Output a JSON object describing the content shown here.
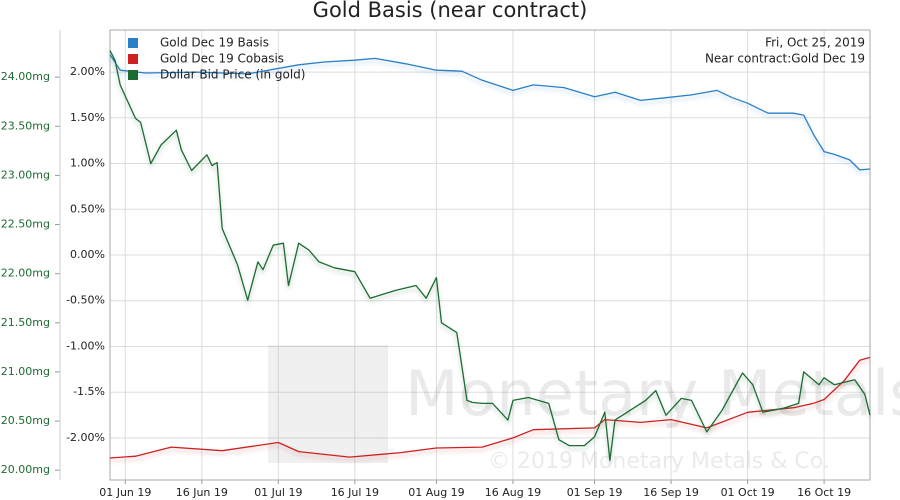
{
  "chart_data": {
    "type": "line",
    "title": "Gold Basis (near contract)",
    "annotations": [
      "Fri, Oct 25, 2019",
      "Near contract:Gold Dec 19"
    ],
    "watermark": [
      "Monetary Metals",
      "© 2019 Monetary Metals & Co."
    ],
    "legend": "upper left",
    "grid": true,
    "xlim": [
      "2019-05-29",
      "2019-10-25"
    ],
    "xticks": [
      {
        "value": "2019-06-01",
        "label": "01 Jun 19"
      },
      {
        "value": "2019-06-16",
        "label": "16 Jun 19"
      },
      {
        "value": "2019-07-01",
        "label": "01 Jul 19"
      },
      {
        "value": "2019-07-16",
        "label": "16 Jul 19"
      },
      {
        "value": "2019-08-01",
        "label": "01 Aug 19"
      },
      {
        "value": "2019-08-16",
        "label": "16 Aug 19"
      },
      {
        "value": "2019-09-01",
        "label": "01 Sep 19"
      },
      {
        "value": "2019-09-16",
        "label": "16 Sep 19"
      },
      {
        "value": "2019-10-01",
        "label": "01 Oct 19"
      },
      {
        "value": "2019-10-16",
        "label": "16 Oct 19"
      }
    ],
    "ylim": [
      -2.46,
      2.46
    ],
    "yticks": [
      {
        "value": 2,
        "label": "2.00%"
      },
      {
        "value": 1.5,
        "label": "1.50%"
      },
      {
        "value": 1,
        "label": "1.00%"
      },
      {
        "value": 0.5,
        "label": "0.50%"
      },
      {
        "value": 0,
        "label": "0.00%"
      },
      {
        "value": -0.5,
        "label": "-0.50%"
      },
      {
        "value": -1,
        "label": "-1.00%"
      },
      {
        "value": -1.5,
        "label": "-1.5%"
      },
      {
        "value": -2,
        "label": "-2.00%"
      }
    ],
    "y2lim": [
      19.9,
      24.48
    ],
    "y2ticks": [
      {
        "value": 24,
        "label": "24.00mg"
      },
      {
        "value": 23.5,
        "label": "23.50mg"
      },
      {
        "value": 23,
        "label": "23.00mg"
      },
      {
        "value": 22.5,
        "label": "22.50mg"
      },
      {
        "value": 22,
        "label": "22.00mg"
      },
      {
        "value": 21.5,
        "label": "21.50mg"
      },
      {
        "value": 21,
        "label": "21.00mg"
      },
      {
        "value": 20.5,
        "label": "20.50mg"
      },
      {
        "value": 20,
        "label": "20.00mg"
      }
    ],
    "series": [
      {
        "name": "Gold Dec 19 Basis",
        "color": "#2a7fc9",
        "x": [
          "2019-05-29",
          "2019-05-31",
          "2019-06-05",
          "2019-06-15",
          "2019-06-25",
          "2019-07-05",
          "2019-07-10",
          "2019-07-16",
          "2019-07-20",
          "2019-07-26",
          "2019-08-01",
          "2019-08-06",
          "2019-08-10",
          "2019-08-16",
          "2019-08-20",
          "2019-08-26",
          "2019-09-01",
          "2019-09-05",
          "2019-09-10",
          "2019-09-15",
          "2019-09-20",
          "2019-09-25",
          "2019-09-28",
          "2019-10-01",
          "2019-10-05",
          "2019-10-10",
          "2019-10-12",
          "2019-10-14",
          "2019-10-16",
          "2019-10-18",
          "2019-10-21",
          "2019-10-23",
          "2019-10-25"
        ],
        "values": [
          2.19,
          2.02,
          1.99,
          2.0,
          1.98,
          2.08,
          2.11,
          2.13,
          2.15,
          2.09,
          2.02,
          2.01,
          1.91,
          1.8,
          1.86,
          1.83,
          1.73,
          1.78,
          1.69,
          1.72,
          1.75,
          1.8,
          1.72,
          1.66,
          1.55,
          1.55,
          1.53,
          1.31,
          1.13,
          1.1,
          1.04,
          0.93,
          0.94
        ]
      },
      {
        "name": "Gold Dec 19 Cobasis",
        "color": "#cc2222",
        "x": [
          "2019-05-29",
          "2019-06-03",
          "2019-06-10",
          "2019-06-20",
          "2019-07-01",
          "2019-07-05",
          "2019-07-15",
          "2019-07-25",
          "2019-08-01",
          "2019-08-10",
          "2019-08-16",
          "2019-08-20",
          "2019-09-01",
          "2019-09-03",
          "2019-09-10",
          "2019-09-16",
          "2019-09-23",
          "2019-10-01",
          "2019-10-10",
          "2019-10-14",
          "2019-10-16",
          "2019-10-20",
          "2019-10-23",
          "2019-10-25"
        ],
        "values": [
          -2.22,
          -2.2,
          -2.1,
          -2.14,
          -2.05,
          -2.15,
          -2.21,
          -2.16,
          -2.11,
          -2.1,
          -2.0,
          -1.91,
          -1.89,
          -1.8,
          -1.83,
          -1.8,
          -1.89,
          -1.72,
          -1.67,
          -1.62,
          -1.58,
          -1.37,
          -1.15,
          -1.12
        ]
      },
      {
        "name": "Dollar Bid Price (in gold)",
        "color": "#1e6b32",
        "axis": "y2",
        "x": [
          "2019-05-29",
          "2019-05-30",
          "2019-05-31",
          "2019-06-03",
          "2019-06-04",
          "2019-06-06",
          "2019-06-08",
          "2019-06-11",
          "2019-06-12",
          "2019-06-14",
          "2019-06-17",
          "2019-06-18",
          "2019-06-19",
          "2019-06-20",
          "2019-06-23",
          "2019-06-25",
          "2019-06-27",
          "2019-06-28",
          "2019-06-30",
          "2019-07-02",
          "2019-07-03",
          "2019-07-05",
          "2019-07-07",
          "2019-07-09",
          "2019-07-12",
          "2019-07-16",
          "2019-07-19",
          "2019-07-24",
          "2019-07-28",
          "2019-07-30",
          "2019-08-01",
          "2019-08-02",
          "2019-08-05",
          "2019-08-07",
          "2019-08-08",
          "2019-08-10",
          "2019-08-12",
          "2019-08-15",
          "2019-08-16",
          "2019-08-19",
          "2019-08-23",
          "2019-08-25",
          "2019-08-27",
          "2019-08-30",
          "2019-09-01",
          "2019-09-03",
          "2019-09-04",
          "2019-09-05",
          "2019-09-08",
          "2019-09-11",
          "2019-09-13",
          "2019-09-15",
          "2019-09-18",
          "2019-09-20",
          "2019-09-23",
          "2019-09-26",
          "2019-09-30",
          "2019-10-02",
          "2019-10-04",
          "2019-10-08",
          "2019-10-11",
          "2019-10-12",
          "2019-10-15",
          "2019-10-16",
          "2019-10-18",
          "2019-10-22",
          "2019-10-24",
          "2019-10-25"
        ],
        "values": [
          24.27,
          24.17,
          23.92,
          23.58,
          23.54,
          23.12,
          23.31,
          23.46,
          23.26,
          23.05,
          23.21,
          23.1,
          23.13,
          22.46,
          22.09,
          21.73,
          22.12,
          22.04,
          22.29,
          22.31,
          21.88,
          22.31,
          22.24,
          22.12,
          22.06,
          22.02,
          21.75,
          21.83,
          21.88,
          21.75,
          21.96,
          21.5,
          21.4,
          20.71,
          20.69,
          20.68,
          20.68,
          20.51,
          20.71,
          20.74,
          20.68,
          20.31,
          20.25,
          20.25,
          20.34,
          20.59,
          20.1,
          20.51,
          20.61,
          20.71,
          20.81,
          20.56,
          20.73,
          20.71,
          20.39,
          20.61,
          20.99,
          20.87,
          20.59,
          20.63,
          20.68,
          21.0,
          20.87,
          20.94,
          20.87,
          20.92,
          20.77,
          20.56
        ]
      }
    ]
  }
}
